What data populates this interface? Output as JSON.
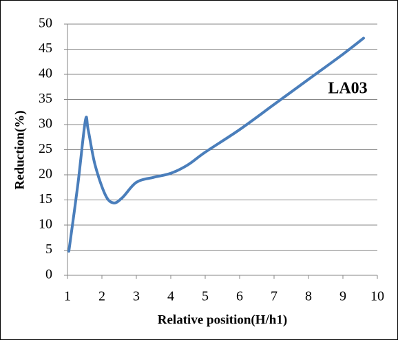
{
  "chart_data": {
    "type": "line",
    "x_label": "Relative position(H/h1)",
    "y_label": "Reduction(%)",
    "annotation": "LA03",
    "x": [
      1.04,
      1.3,
      1.52,
      1.6,
      1.8,
      2.1,
      2.34,
      2.6,
      3,
      3.5,
      4,
      4.5,
      5,
      6,
      7,
      8,
      9,
      9.6
    ],
    "series": [
      {
        "name": "LA03",
        "color": "#4a7ebb",
        "values": [
          4.8,
          18,
          30.8,
          29,
          22,
          16,
          14.4,
          15.5,
          18.5,
          19.5,
          20.3,
          22,
          24.5,
          29,
          34,
          39,
          44,
          47.2
        ]
      }
    ],
    "xlim": [
      1,
      10
    ],
    "xticks": [
      1,
      2,
      3,
      4,
      5,
      6,
      7,
      8,
      9,
      10
    ],
    "ylim": [
      0,
      50
    ],
    "yticks": [
      0,
      5,
      10,
      15,
      20,
      25,
      30,
      35,
      40,
      45,
      50
    ],
    "grid": true
  }
}
